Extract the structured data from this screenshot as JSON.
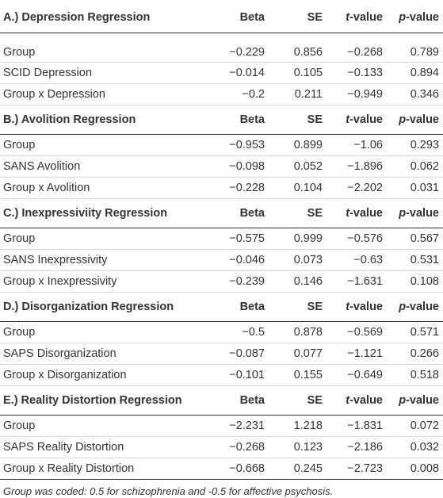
{
  "sections": [
    {
      "title": "A.) Depression Regression",
      "headers": [
        "Beta",
        "SE",
        "t",
        "-value",
        "p",
        "-value"
      ],
      "rows": [
        {
          "label": "Group",
          "beta": "−0.229",
          "se": "0.856",
          "t": "−0.268",
          "p": "0.789"
        },
        {
          "label": "SCID Depression",
          "beta": "−0.014",
          "se": "0.105",
          "t": "−0.133",
          "p": "0.894"
        },
        {
          "label": "Group x Depression",
          "beta": "−0.2",
          "se": "0.211",
          "t": "−0.949",
          "p": "0.346"
        }
      ]
    },
    {
      "title": "B.) Avolition Regression",
      "rows": [
        {
          "label": "Group",
          "beta": "−0.953",
          "se": "0.899",
          "t": "−1.06",
          "p": "0.293"
        },
        {
          "label": "SANS Avolition",
          "beta": "−0.098",
          "se": "0.052",
          "t": "−1.896",
          "p": "0.062"
        },
        {
          "label": "Group x Avolition",
          "beta": "−0.228",
          "se": "0.104",
          "t": "−2.202",
          "p": "0.031"
        }
      ]
    },
    {
      "title": "C.) Inexpressiviity Regression",
      "rows": [
        {
          "label": "Group",
          "beta": "−0.575",
          "se": "0.999",
          "t": "−0.576",
          "p": "0.567"
        },
        {
          "label": "SANS Inexpressivity",
          "beta": "−0.046",
          "se": "0.073",
          "t": "−0.63",
          "p": "0.531"
        },
        {
          "label": "Group x Inexpressivity",
          "beta": "−0.239",
          "se": "0.146",
          "t": "−1.631",
          "p": "0.108"
        }
      ]
    },
    {
      "title": "D.) Disorganization Regression",
      "rows": [
        {
          "label": "Group",
          "beta": "−0.5",
          "se": "0.878",
          "t": "−0.569",
          "p": "0.571"
        },
        {
          "label": "SAPS Disorganization",
          "beta": "−0.087",
          "se": "0.077",
          "t": "−1.121",
          "p": "0.266"
        },
        {
          "label": "Group x Disorganization",
          "beta": "−0.101",
          "se": "0.155",
          "t": "−0.649",
          "p": "0.518"
        }
      ]
    },
    {
      "title": "E.) Reality Distortion Regression",
      "rows": [
        {
          "label": "Group",
          "beta": "−2.231",
          "se": "1.218",
          "t": "−1.831",
          "p": "0.072"
        },
        {
          "label": "SAPS Reality Distortion",
          "beta": "−0.268",
          "se": "0.123",
          "t": "−2.186",
          "p": "0.032"
        },
        {
          "label": "Group x Reality Distortion",
          "beta": "−0.668",
          "se": "0.245",
          "t": "−2.723",
          "p": "0.008"
        }
      ]
    }
  ],
  "columns": {
    "beta": "Beta",
    "se": "SE",
    "t_italic": "t",
    "t_suffix": "-value",
    "p_italic": "p",
    "p_suffix": "-value"
  },
  "footnote": "Group was coded: 0.5 for schizophrenia and -0.5 for affective psychosis."
}
